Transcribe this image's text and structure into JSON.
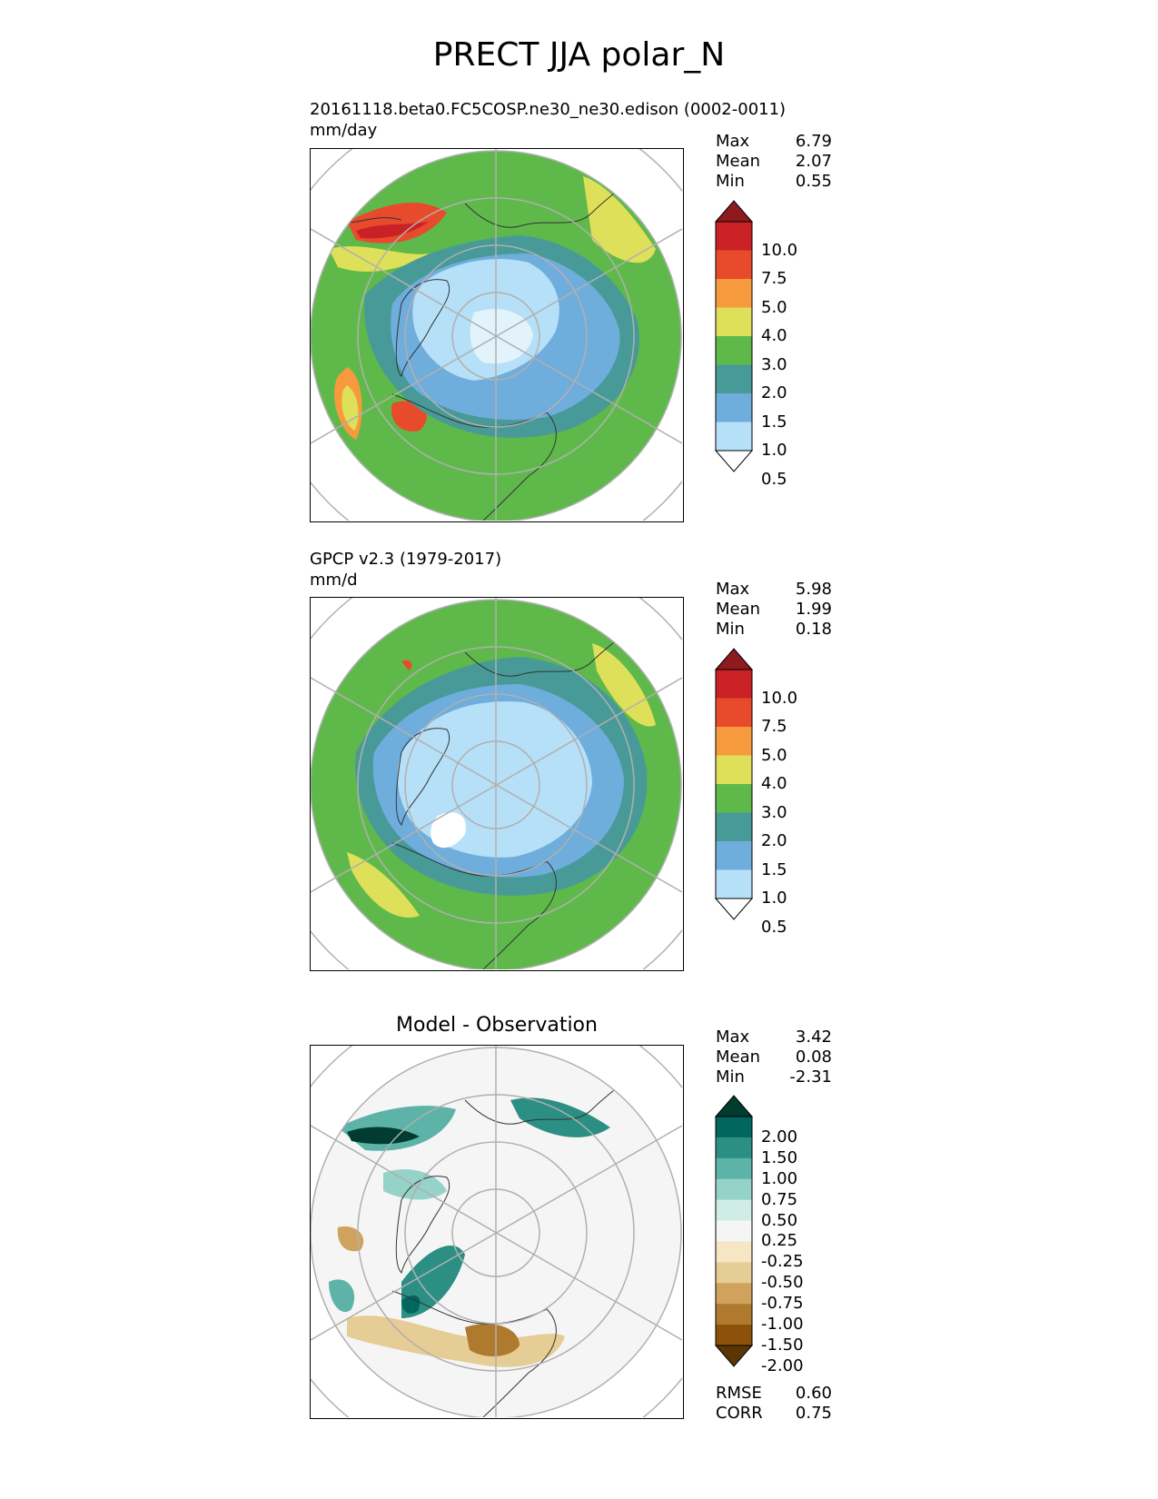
{
  "figure": {
    "title": "PRECT JJA polar_N"
  },
  "chart_data": [
    {
      "type": "heatmap",
      "projection": "north-polar-stereographic",
      "title": "20161118.beta0.FC5COSP.ne30_ne30.edison (0002-0011)",
      "units": "mm/day",
      "stats": [
        {
          "label": "Max",
          "value": "6.79"
        },
        {
          "label": "Mean",
          "value": "2.07"
        },
        {
          "label": "Min",
          "value": "0.55"
        }
      ],
      "colorbar": {
        "levels": [
          "10.0",
          "7.5",
          "5.0",
          "4.0",
          "3.0",
          "2.0",
          "1.5",
          "1.0",
          "0.5"
        ],
        "colors": [
          "#8e1a1e",
          "#ca2127",
          "#e84a2c",
          "#f79a3d",
          "#dfe05a",
          "#5fb94a",
          "#489a98",
          "#6faddd",
          "#b6e0f7",
          "#ffffff"
        ]
      }
    },
    {
      "type": "heatmap",
      "projection": "north-polar-stereographic",
      "title": "GPCP v2.3 (1979-2017)",
      "units": "mm/d",
      "stats": [
        {
          "label": "Max",
          "value": "5.98"
        },
        {
          "label": "Mean",
          "value": "1.99"
        },
        {
          "label": "Min",
          "value": "0.18"
        }
      ],
      "colorbar": {
        "levels": [
          "10.0",
          "7.5",
          "5.0",
          "4.0",
          "3.0",
          "2.0",
          "1.5",
          "1.0",
          "0.5"
        ],
        "colors": [
          "#8e1a1e",
          "#ca2127",
          "#e84a2c",
          "#f79a3d",
          "#dfe05a",
          "#5fb94a",
          "#489a98",
          "#6faddd",
          "#b6e0f7",
          "#ffffff"
        ]
      }
    },
    {
      "type": "heatmap",
      "projection": "north-polar-stereographic",
      "title": "Model - Observation",
      "stats": [
        {
          "label": "Max",
          "value": "3.42"
        },
        {
          "label": "Mean",
          "value": "0.08"
        },
        {
          "label": "Min",
          "value": "-2.31"
        }
      ],
      "colorbar": {
        "levels": [
          "2.00",
          "1.50",
          "1.00",
          "0.75",
          "0.50",
          "0.25",
          "-0.25",
          "-0.50",
          "-0.75",
          "-1.00",
          "-1.50",
          "-2.00"
        ],
        "colors": [
          "#003c30",
          "#01665e",
          "#2b8f84",
          "#5db3a8",
          "#95d2c8",
          "#cfece7",
          "#f5f5f5",
          "#f5e6c4",
          "#e6cc95",
          "#cfa35d",
          "#b07a2e",
          "#8c510a",
          "#5c3507"
        ]
      },
      "metrics": [
        {
          "label": "RMSE",
          "value": "0.60"
        },
        {
          "label": "CORR",
          "value": "0.75"
        }
      ]
    }
  ],
  "map_colors": {
    "panel1": {
      "background": "#5fb94a",
      "land_line": "#333333",
      "grid": "#b0b0b0"
    },
    "panel2": {
      "background": "#5fb94a",
      "land_line": "#333333",
      "grid": "#b0b0b0"
    },
    "panel3": {
      "background": "#f5f5f5",
      "land_line": "#333333",
      "grid": "#b0b0b0"
    }
  }
}
